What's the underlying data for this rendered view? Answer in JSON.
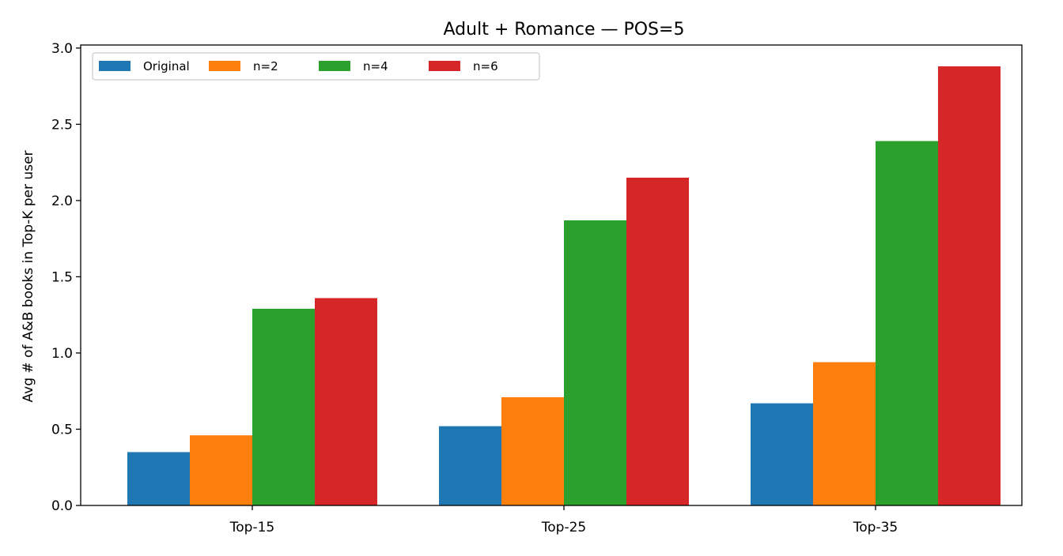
{
  "chart_data": {
    "type": "bar",
    "title": "Adult + Romance — POS=5",
    "xlabel": "",
    "ylabel": "Avg # of A&B books in Top-K per user",
    "categories": [
      "Top-15",
      "Top-25",
      "Top-35"
    ],
    "series": [
      {
        "name": "Original",
        "color": "#1f77b4",
        "values": [
          0.35,
          0.52,
          0.67
        ]
      },
      {
        "name": "n=2",
        "color": "#ff7f0e",
        "values": [
          0.46,
          0.71,
          0.94
        ]
      },
      {
        "name": "n=4",
        "color": "#2ca02c",
        "values": [
          1.29,
          1.87,
          2.39
        ]
      },
      {
        "name": "n=6",
        "color": "#d62728",
        "values": [
          1.36,
          2.15,
          2.88
        ]
      }
    ],
    "ylim": [
      0,
      3.02
    ],
    "yticks": [
      0.0,
      0.5,
      1.0,
      1.5,
      2.0,
      2.5,
      3.0
    ],
    "ytick_labels": [
      "0.0",
      "0.5",
      "1.0",
      "1.5",
      "2.0",
      "2.5",
      "3.0"
    ],
    "grid": false,
    "legend_position": "top-left"
  }
}
